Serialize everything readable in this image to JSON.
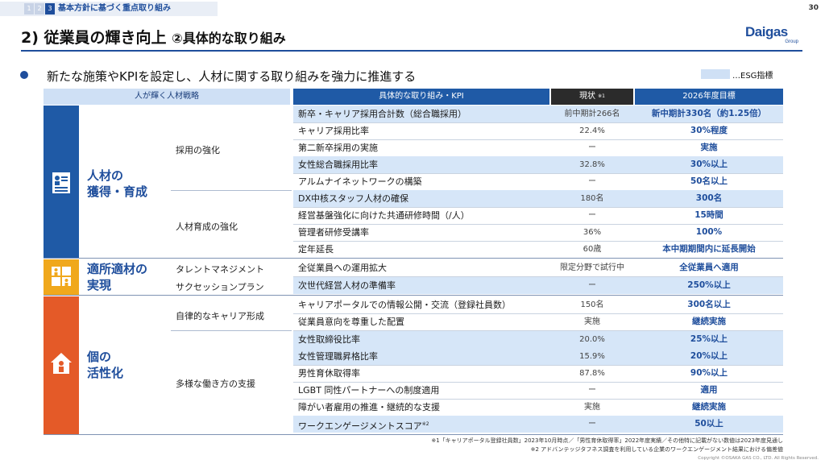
{
  "topbar": {
    "steps": [
      "1",
      "2",
      "3"
    ],
    "active_step": "3",
    "section_label": "基本方針に基づく重点取り組み",
    "page_number": "30"
  },
  "title": {
    "main": "2) 従業員の輝き向上",
    "sub": "②具体的な取り組み"
  },
  "logo": {
    "word": "Daigas",
    "group": "Group"
  },
  "lead": "新たな施策やKPIを設定し、人材に関する取り組みを強力に推進する",
  "legend": {
    "label": "…ESG指標",
    "color": "#cfe0f5"
  },
  "table": {
    "headers": {
      "strategy": "人が輝く人材戦略",
      "item": "具体的な取り組み・KPI",
      "current": "現状",
      "current_note": "※1",
      "target": "2026年度目標"
    },
    "categories": [
      {
        "label_line1": "人材の",
        "label_line2": "獲得・育成",
        "color": "#1f5aa6"
      },
      {
        "label_line1": "適所適材の",
        "label_line2": "実現",
        "color": "#f0a81c"
      },
      {
        "label_line1": "個の",
        "label_line2": "活性化",
        "color": "#e45a28"
      }
    ],
    "strategies": [
      "採用の強化",
      "人材育成の強化",
      "タレントマネジメント",
      "サクセッションプラン",
      "自律的なキャリア形成",
      "多様な働き方の支援"
    ],
    "rows": [
      {
        "item": "新卒・キャリア採用合計数（総合職採用）",
        "current": "前中期計266名",
        "target": "新中期計330名（約1.25倍）",
        "esg": true
      },
      {
        "item": "キャリア採用比率",
        "current": "22.4%",
        "target": "30%程度",
        "esg": false
      },
      {
        "item": "第二新卒採用の実施",
        "current": "ー",
        "target": "実施",
        "esg": false
      },
      {
        "item": "女性総合職採用比率",
        "current": "32.8%",
        "target": "30%以上",
        "esg": true
      },
      {
        "item": "アルムナイネットワークの構築",
        "current": "ー",
        "target": "50名以上",
        "esg": false
      },
      {
        "item": "DX中核スタッフ人材の確保",
        "current": "180名",
        "target": "300名",
        "esg": true
      },
      {
        "item": "経営基盤強化に向けた共通研修時間（/人）",
        "current": "ー",
        "target": "15時間",
        "esg": false
      },
      {
        "item": "管理者研修受講率",
        "current": "36%",
        "target": "100%",
        "esg": false
      },
      {
        "item": "定年延長",
        "current": "60歳",
        "target": "本中期期間内に延長開始",
        "esg": false
      },
      {
        "item": "全従業員への運用拡大",
        "current": "限定分野で試行中",
        "target": "全従業員へ適用",
        "esg": false
      },
      {
        "item": "次世代経営人材の準備率",
        "current": "ー",
        "target": "250%以上",
        "esg": true
      },
      {
        "item": "キャリアポータルでの情報公開・交流（登録社員数）",
        "current": "150名",
        "target": "300名以上",
        "esg": false
      },
      {
        "item": "従業員意向を尊重した配置",
        "current": "実施",
        "target": "継続実施",
        "esg": false
      },
      {
        "item": "女性取締役比率",
        "current": "20.0%",
        "target": "25%以上",
        "esg": true
      },
      {
        "item": "女性管理職昇格比率",
        "current": "15.9%",
        "target": "20%以上",
        "esg": true
      },
      {
        "item": "男性育休取得率",
        "current": "87.8%",
        "target": "90%以上",
        "esg": false
      },
      {
        "item": "LGBT 同性パートナーへの制度適用",
        "current": "ー",
        "target": "適用",
        "esg": false
      },
      {
        "item": "障がい者雇用の推進・継続的な支援",
        "current": "実施",
        "target": "継続実施",
        "esg": false
      },
      {
        "item": "ワークエンゲージメントスコア",
        "item_note": "※2",
        "current": "ー",
        "target": "50以上",
        "esg": true
      }
    ]
  },
  "footnotes": {
    "note1": "※1「キャリアポータル登録社員数」2023年10月時点／「男性育休取得率」2022年度実績／その他特に記載がない数値は2023年度見通し",
    "note2": "※2 アドバンテッジタフネス調査を利用している企業のワークエンゲージメント結果における偏差値"
  },
  "copyright": "Copyright ©OSAKA GAS CO., LTD. All Rights Reserved."
}
